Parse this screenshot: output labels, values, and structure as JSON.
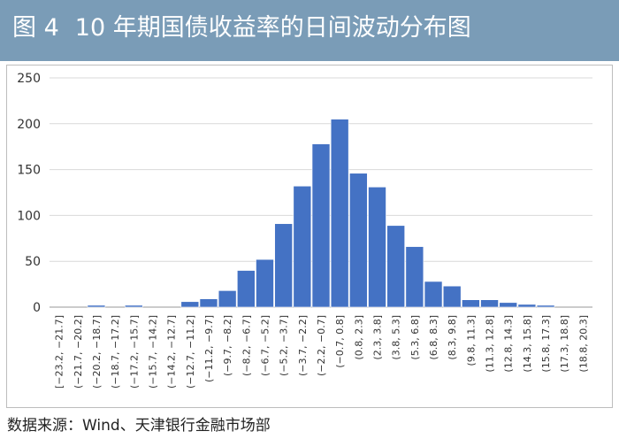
{
  "header": {
    "figure_no": "图 4",
    "title": "10 年期国债收益率的日间波动分布图"
  },
  "source": "数据来源：Wind、天津银行金融市场部",
  "colors": {
    "header_bg": "#7a9cb7",
    "bar": "#4472c4",
    "grid": "#d9d9d9"
  },
  "chart_data": {
    "type": "bar",
    "title": "10 年期国债收益率的日间波动分布图",
    "xlabel": "",
    "ylabel": "",
    "ylim": [
      0,
      250
    ],
    "yticks": [
      0,
      50,
      100,
      150,
      200,
      250
    ],
    "grid": true,
    "categories": [
      "[−23.2, −21.7]",
      "(−21.7, −20.2]",
      "(−20.2, −18.7]",
      "(−18.7, −17.2]",
      "(−17.2, −15.7]",
      "(−15.7, −14.2]",
      "(−14.2, −12.7]",
      "(−12.7, −11.2]",
      "(−11.2, −9.7]",
      "(−9.7, −8.2]",
      "(−8.2, −6.7]",
      "(−6.7, −5.2]",
      "(−5.2, −3.7]",
      "(−3.7, −2.2]",
      "(−2.2, −0.7]",
      "(−0.7, 0.8]",
      "(0.8, 2.3]",
      "(2.3, 3.8]",
      "(3.8, 5.3]",
      "(5.3, 6.8]",
      "(6.8, 8.3]",
      "(8.3, 9.8]",
      "(9.8, 11.3]",
      "(11.3, 12.8]",
      "(12.8, 14.3]",
      "(14.3, 15.8]",
      "(15.8, 17.3]",
      "(17.3, 18.8]",
      "(18.8, 20.3]"
    ],
    "values": [
      0,
      0,
      2,
      0,
      2,
      0,
      0,
      6,
      9,
      18,
      40,
      52,
      91,
      132,
      178,
      205,
      146,
      131,
      89,
      66,
      28,
      23,
      8,
      8,
      5,
      3,
      2,
      0,
      0
    ]
  }
}
